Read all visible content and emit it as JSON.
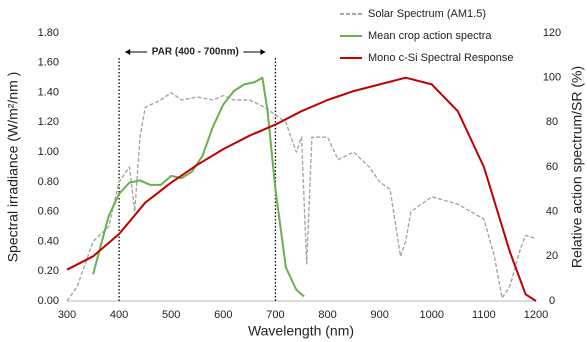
{
  "chart_data": {
    "type": "line",
    "xlabel": "Wavelength (nm)",
    "ylabel": "Spectral irradiance (W/m²/nm )",
    "y2label": "Relative action spectrum/SR (%)",
    "annotation": "PAR (400 - 700nm)",
    "par_range": [
      400,
      700
    ],
    "xlim": [
      300,
      1200
    ],
    "xticks": [
      300,
      400,
      500,
      600,
      700,
      800,
      900,
      1000,
      1100,
      1200
    ],
    "ylim": [
      0,
      1.8
    ],
    "yticks": [
      {
        "value": 0,
        "label": "0.00"
      },
      {
        "value": 0.2,
        "label": "0.20"
      },
      {
        "value": 0.4,
        "label": "0.40"
      },
      {
        "value": 0.6,
        "label": "0.60"
      },
      {
        "value": 0.8,
        "label": "0.80"
      },
      {
        "value": 1,
        "label": "1.00"
      },
      {
        "value": 1.2,
        "label": "1.20"
      },
      {
        "value": 1.4,
        "label": "1.40"
      },
      {
        "value": 1.6,
        "label": "1.60"
      },
      {
        "value": 1.8,
        "label": "1.80"
      }
    ],
    "y2lim": [
      0,
      120
    ],
    "y2ticks": [
      0,
      20,
      40,
      60,
      80,
      100,
      120
    ],
    "series": [
      {
        "name": "Solar Spectrum (AM1.5)",
        "color": "#a6a6a6",
        "dashed": true,
        "x": [
          300,
          320,
          350,
          380,
          400,
          420,
          430,
          440,
          450,
          480,
          500,
          520,
          550,
          580,
          600,
          620,
          650,
          680,
          700,
          720,
          740,
          750,
          760,
          770,
          800,
          820,
          850,
          880,
          900,
          920,
          940,
          950,
          960,
          980,
          1000,
          1050,
          1100,
          1120,
          1135,
          1150,
          1170,
          1180,
          1200
        ],
        "values": [
          0,
          0.1,
          0.4,
          0.5,
          0.8,
          0.9,
          0.6,
          1.1,
          1.3,
          1.35,
          1.4,
          1.35,
          1.37,
          1.35,
          1.38,
          1.35,
          1.35,
          1.3,
          1.25,
          1.2,
          1.0,
          1.1,
          0.25,
          1.1,
          1.1,
          0.95,
          1.0,
          0.9,
          0.8,
          0.75,
          0.3,
          0.4,
          0.6,
          0.65,
          0.7,
          0.65,
          0.55,
          0.3,
          0.02,
          0.1,
          0.35,
          0.44,
          0.42
        ]
      },
      {
        "name": "Mean crop action spectra",
        "color": "#6ab04c",
        "axis": "y2",
        "x": [
          350,
          380,
          400,
          420,
          440,
          460,
          480,
          500,
          520,
          540,
          560,
          580,
          600,
          620,
          640,
          660,
          675,
          685,
          700,
          720,
          740,
          755
        ],
        "values": [
          12,
          38,
          48,
          53,
          54,
          52,
          52,
          56,
          55,
          58,
          65,
          78,
          88,
          94,
          97,
          98,
          100,
          85,
          50,
          15,
          5,
          2
        ]
      },
      {
        "name": "Mono c-Si Spectral Response",
        "color": "#c00000",
        "axis": "y2",
        "x": [
          300,
          350,
          400,
          450,
          500,
          550,
          600,
          650,
          700,
          750,
          800,
          850,
          900,
          950,
          1000,
          1050,
          1100,
          1150,
          1180,
          1200
        ],
        "values": [
          14,
          20,
          30,
          44,
          53,
          61,
          68,
          74,
          79,
          85,
          90,
          94,
          97,
          100,
          97,
          85,
          60,
          22,
          3,
          0
        ]
      }
    ]
  }
}
